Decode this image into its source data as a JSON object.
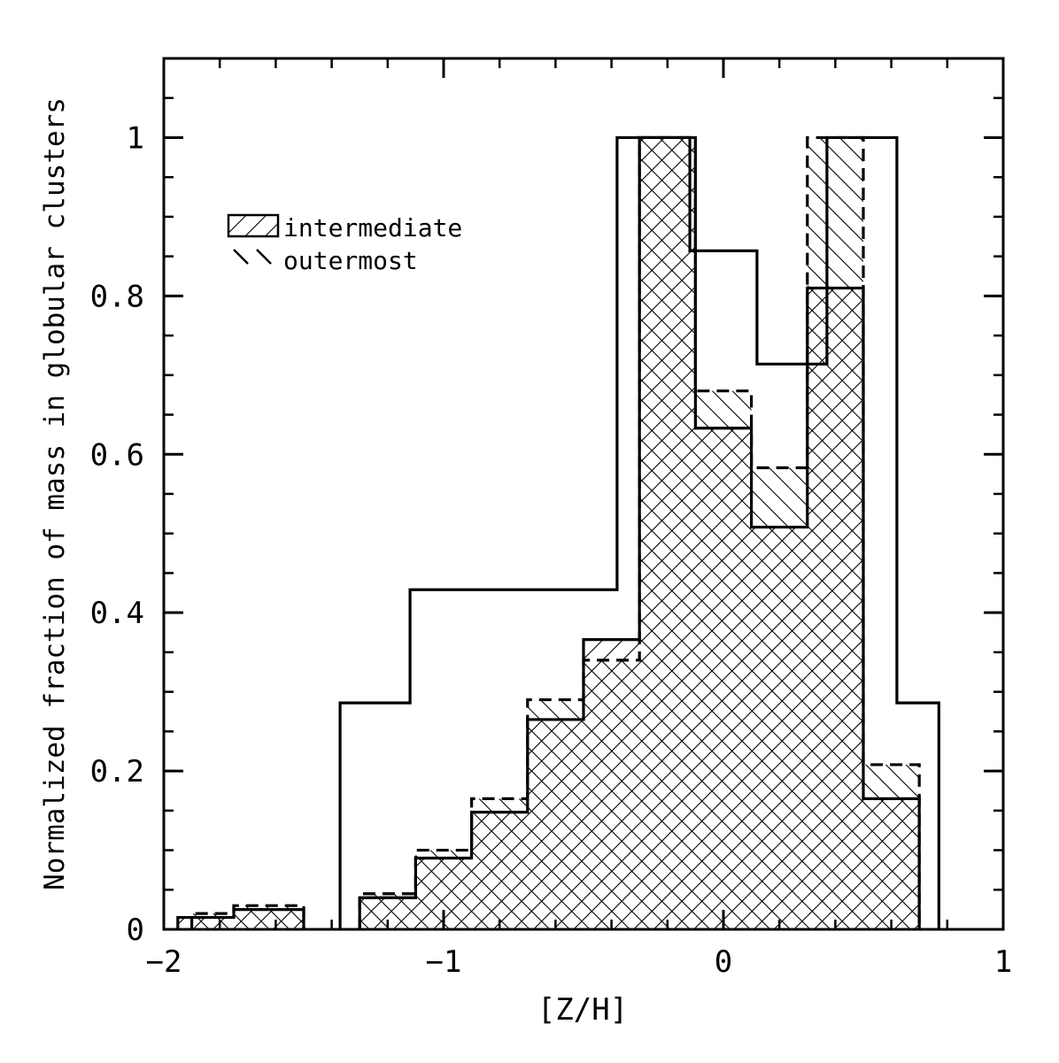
{
  "chart_data": {
    "type": "histogram",
    "xlabel": "[Z/H]",
    "ylabel": "Normalized fraction of mass in globular clusters",
    "xlim": [
      -2,
      1
    ],
    "ylim": [
      0,
      1.1
    ],
    "x_ticks": [
      {
        "value": -2,
        "label": "−2"
      },
      {
        "value": -1,
        "label": "−1"
      },
      {
        "value": 0,
        "label": "0"
      },
      {
        "value": 1,
        "label": "1"
      }
    ],
    "y_ticks": [
      {
        "value": 0,
        "label": "0"
      },
      {
        "value": 0.2,
        "label": "0.2"
      },
      {
        "value": 0.4,
        "label": "0.4"
      },
      {
        "value": 0.6,
        "label": "0.6"
      },
      {
        "value": 0.8,
        "label": "0.8"
      },
      {
        "value": 1,
        "label": "1"
      }
    ],
    "legend": {
      "position": "top-left",
      "entries": [
        {
          "label": "intermediate",
          "hatch": "forward-diagonal"
        },
        {
          "label": "outermost",
          "hatch": "back-diagonal"
        }
      ]
    },
    "series": [
      {
        "style": "solid-outline",
        "bins": [
          {
            "x0": -1.37,
            "x1": -1.12,
            "y": 0.286
          },
          {
            "x0": -1.12,
            "x1": -0.38,
            "y": 0.429
          },
          {
            "x0": -0.38,
            "x1": -0.12,
            "y": 1.0
          },
          {
            "x0": -0.12,
            "x1": 0.12,
            "y": 0.857
          },
          {
            "x0": 0.12,
            "x1": 0.37,
            "y": 0.714
          },
          {
            "x0": 0.37,
            "x1": 0.62,
            "y": 1.0
          },
          {
            "x0": 0.62,
            "x1": 0.77,
            "y": 0.286
          }
        ]
      },
      {
        "name": "intermediate",
        "style": "hatch-forward-solid",
        "bins": [
          {
            "x0": -1.95,
            "x1": -1.85,
            "y": 0.015
          },
          {
            "x0": -1.85,
            "x1": -1.75,
            "y": 0.015
          },
          {
            "x0": -1.75,
            "x1": -1.5,
            "y": 0.025
          },
          {
            "x0": -1.3,
            "x1": -1.1,
            "y": 0.04
          },
          {
            "x0": -1.1,
            "x1": -0.9,
            "y": 0.09
          },
          {
            "x0": -0.9,
            "x1": -0.7,
            "y": 0.148
          },
          {
            "x0": -0.7,
            "x1": -0.5,
            "y": 0.265
          },
          {
            "x0": -0.5,
            "x1": -0.3,
            "y": 0.366
          },
          {
            "x0": -0.3,
            "x1": -0.1,
            "y": 1.0
          },
          {
            "x0": -0.1,
            "x1": 0.1,
            "y": 0.633
          },
          {
            "x0": 0.1,
            "x1": 0.3,
            "y": 0.508
          },
          {
            "x0": 0.3,
            "x1": 0.5,
            "y": 0.81
          },
          {
            "x0": 0.5,
            "x1": 0.7,
            "y": 0.165
          }
        ]
      },
      {
        "name": "outermost",
        "style": "hatch-back-dashed",
        "bins": [
          {
            "x0": -1.9,
            "x1": -1.8,
            "y": 0.02
          },
          {
            "x0": -1.8,
            "x1": -1.75,
            "y": 0.02
          },
          {
            "x0": -1.75,
            "x1": -1.5,
            "y": 0.03
          },
          {
            "x0": -1.3,
            "x1": -1.1,
            "y": 0.045
          },
          {
            "x0": -1.1,
            "x1": -0.9,
            "y": 0.1
          },
          {
            "x0": -0.9,
            "x1": -0.7,
            "y": 0.165
          },
          {
            "x0": -0.7,
            "x1": -0.5,
            "y": 0.29
          },
          {
            "x0": -0.5,
            "x1": -0.3,
            "y": 0.34
          },
          {
            "x0": -0.3,
            "x1": -0.1,
            "y": 1.0
          },
          {
            "x0": -0.1,
            "x1": 0.1,
            "y": 0.68
          },
          {
            "x0": 0.1,
            "x1": 0.3,
            "y": 0.583
          },
          {
            "x0": 0.3,
            "x1": 0.5,
            "y": 1.0
          },
          {
            "x0": 0.5,
            "x1": 0.7,
            "y": 0.208
          }
        ]
      }
    ]
  }
}
